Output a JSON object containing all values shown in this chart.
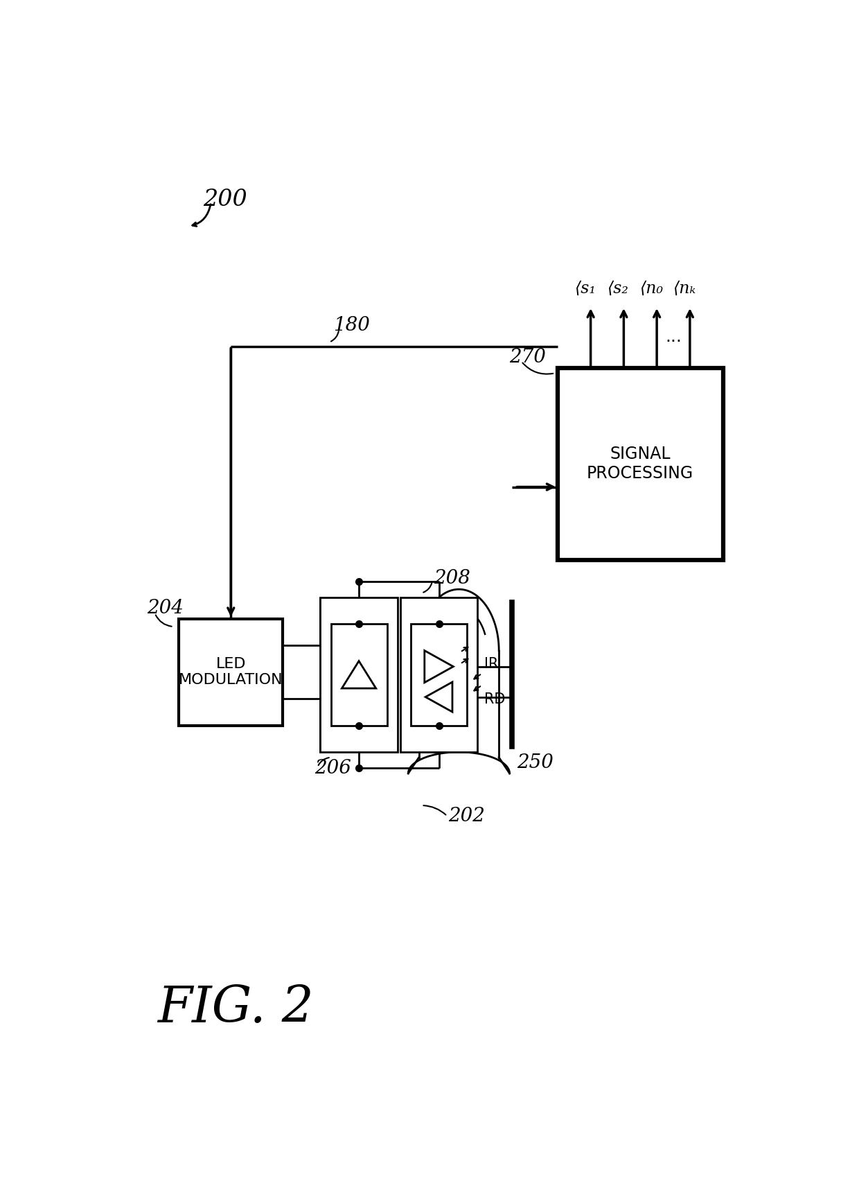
{
  "bg_color": "#ffffff",
  "lc": "#000000",
  "fig_ref": "200",
  "fig_name": "FIG. 2",
  "led_mod_label": "LED\nMODULATION",
  "sp_label": "SIGNAL\nPROCESSING",
  "ref_204": "204",
  "ref_206": "206",
  "ref_208": "208",
  "ref_270": "270",
  "ref_180": "180",
  "ref_202": "202",
  "ref_250": "250",
  "out_labels": [
    "⟨s₁",
    "⟨s₂",
    "⟨n₀",
    "⟨nₖ"
  ],
  "ir_label": "IR",
  "rd_label": "RD",
  "dots": "..."
}
